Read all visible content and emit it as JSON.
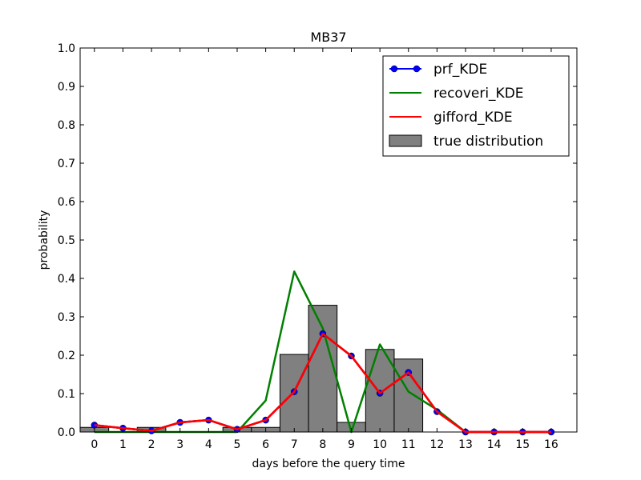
{
  "chart_data": {
    "type": "line",
    "title": "MB37",
    "xlabel": "days before the query time",
    "ylabel": "probability",
    "xlim": [
      -0.5,
      16.9
    ],
    "ylim": [
      0,
      1.0
    ],
    "x": [
      0,
      1,
      2,
      3,
      4,
      5,
      6,
      7,
      8,
      9,
      10,
      11,
      12,
      13,
      14,
      15,
      16
    ],
    "x_ticks": [
      "0",
      "1",
      "2",
      "3",
      "4",
      "5",
      "6",
      "7",
      "8",
      "9",
      "10",
      "11",
      "12",
      "13",
      "14",
      "15",
      "16"
    ],
    "y_ticks": [
      "0.0",
      "0.1",
      "0.2",
      "0.3",
      "0.4",
      "0.5",
      "0.6",
      "0.7",
      "0.8",
      "0.9",
      "1.0"
    ],
    "grid": false,
    "legend_position": "top-right",
    "series": [
      {
        "name": "prf_KDE",
        "kind": "line-marker",
        "color": "#0000ff",
        "values": [
          0.018,
          0.01,
          0.003,
          0.025,
          0.031,
          0.007,
          0.031,
          0.105,
          0.256,
          0.198,
          0.101,
          0.155,
          0.053,
          0.0,
          0.0,
          0.0,
          0.0
        ]
      },
      {
        "name": "recoveri_KDE",
        "kind": "line",
        "color": "#008000",
        "values": [
          0.0,
          0.0,
          0.0,
          0.0,
          0.0,
          0.0,
          0.082,
          0.418,
          0.27,
          0.0,
          0.228,
          0.105,
          0.058,
          0.0,
          0.0,
          0.0,
          0.0
        ]
      },
      {
        "name": "gifford_KDE",
        "kind": "line",
        "color": "#ff0000",
        "values": [
          0.018,
          0.01,
          0.003,
          0.025,
          0.031,
          0.007,
          0.031,
          0.105,
          0.256,
          0.198,
          0.101,
          0.155,
          0.053,
          0.0,
          0.0,
          0.0,
          0.0
        ]
      },
      {
        "name": "true distribution",
        "kind": "bar",
        "color": "#808080",
        "values": [
          0.012,
          0.0,
          0.012,
          0.0,
          0.0,
          0.012,
          0.012,
          0.202,
          0.33,
          0.025,
          0.215,
          0.19,
          0.0,
          0.0,
          0.0,
          0.0,
          0.0
        ]
      }
    ]
  }
}
